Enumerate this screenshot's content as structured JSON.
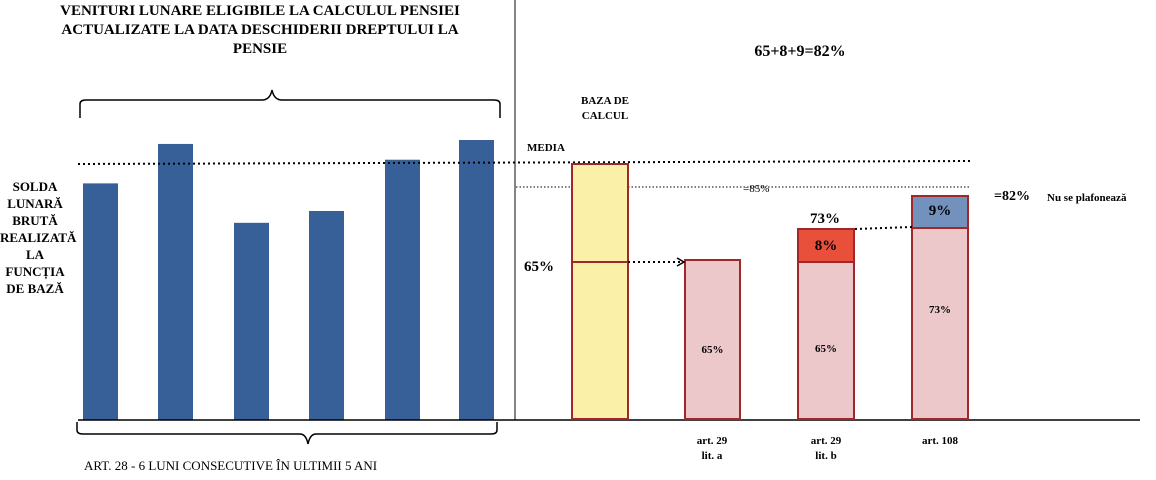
{
  "left_panel": {
    "title": "VENITURI LUNARE  ELIGIBILE LA CALCULUL PENSIEI\nACTUALIZATE LA DATA DESCHIDERII DREPTULUI LA\nPENSIE",
    "side_label": "SOLDA\nLUNARĂ\nBRUTĂ\nREALIZATĂ\nLA\nFUNCȚIA\nDE BAZĂ",
    "footnote": "ART. 28 - 6 LUNI CONSECUTIVE ÎN ULTIMII 5 ANI",
    "bar_color": "#386098"
  },
  "right_panel": {
    "formula": "65+8+9=82%",
    "baza_label": "BAZA DE\nCALCUL",
    "media_label": "MEDIA",
    "pct85_label": "=85%",
    "pct65_left_label": "65%",
    "label_73_top": "73%",
    "label_82": "=82%",
    "nu_se_plafoneaza": "Nu se plafonează",
    "categories": [
      "art. 29\nlit. a",
      "art. 29\nlit. b",
      "art. 108"
    ],
    "segments": {
      "art29a_base": "65%",
      "art29b_base": "65%",
      "art29b_add": "8%",
      "art108_base": "73%",
      "art108_add": "9%"
    },
    "colors": {
      "baza": "#fbf0a8",
      "base": "#ecc8cb",
      "add_red": "#e8503c",
      "add_blue": "#7391bd",
      "border": "#a02828"
    }
  },
  "chart_data": {
    "type": "bar",
    "left": {
      "series": [
        {
          "values": [
            6,
            7,
            5,
            5.3,
            6.6,
            7.1
          ]
        }
      ]
    },
    "right": {
      "categories": [
        "BAZA DE CALCUL",
        "art. 29 lit. a",
        "art. 29 lit. b",
        "art. 108"
      ],
      "values_percent": [
        100,
        65,
        73,
        82
      ],
      "stacked": [
        {
          "name": "65%",
          "values": [
            null,
            65,
            65,
            73
          ]
        },
        {
          "name": "8%",
          "values": [
            null,
            0,
            8,
            0
          ]
        },
        {
          "name": "9%",
          "values": [
            null,
            0,
            0,
            9
          ]
        }
      ]
    }
  }
}
